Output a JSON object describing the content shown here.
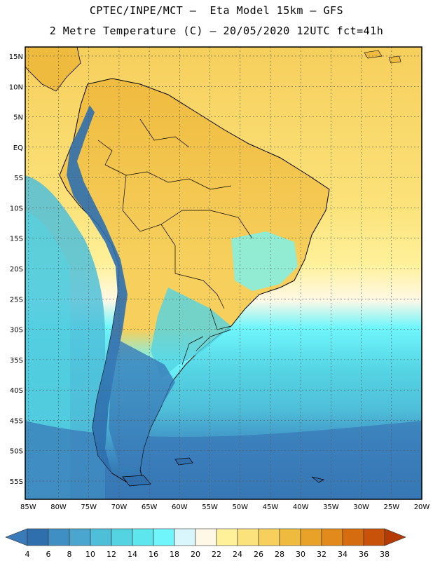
{
  "header": {
    "title_line1": "CPTEC/INPE/MCT –  Eta Model 15km – GFS",
    "title_line2": "2 Metre Temperature (C) – 20/05/2020 12UTC fct=41h"
  },
  "map": {
    "lat_labels": [
      "15N",
      "10N",
      "5N",
      "EQ",
      "5S",
      "10S",
      "15S",
      "20S",
      "25S",
      "30S",
      "35S",
      "40S",
      "45S",
      "50S",
      "55S"
    ],
    "lat_values": [
      15,
      10,
      5,
      0,
      -5,
      -10,
      -15,
      -20,
      -25,
      -30,
      -35,
      -40,
      -45,
      -50,
      -55
    ],
    "lon_labels": [
      "85W",
      "80W",
      "75W",
      "70W",
      "65W",
      "60W",
      "55W",
      "50W",
      "45W",
      "40W",
      "35W",
      "30W",
      "25W",
      "20W"
    ],
    "lon_values": [
      -85,
      -80,
      -75,
      -70,
      -65,
      -60,
      -55,
      -50,
      -45,
      -40,
      -35,
      -30,
      -25,
      -20
    ],
    "lon_range": [
      -85.5,
      -20
    ],
    "lat_range": [
      -58,
      16.5
    ]
  },
  "colorbar": {
    "labels": [
      "4",
      "6",
      "8",
      "10",
      "12",
      "14",
      "16",
      "18",
      "20",
      "22",
      "24",
      "26",
      "28",
      "30",
      "32",
      "34",
      "36",
      "38"
    ],
    "colors": [
      "#3a7ab8",
      "#2f6fae",
      "#3f8fc4",
      "#4aa6cf",
      "#4fbfd9",
      "#54d3e3",
      "#5ee6ef",
      "#6ff5fb",
      "#d8f6fb",
      "#fff8e6",
      "#fff19a",
      "#fbe27a",
      "#f6cf5c",
      "#efbb3f",
      "#e9a229",
      "#e28a1c",
      "#d66c10",
      "#c8520a",
      "#b43a06"
    ]
  }
}
